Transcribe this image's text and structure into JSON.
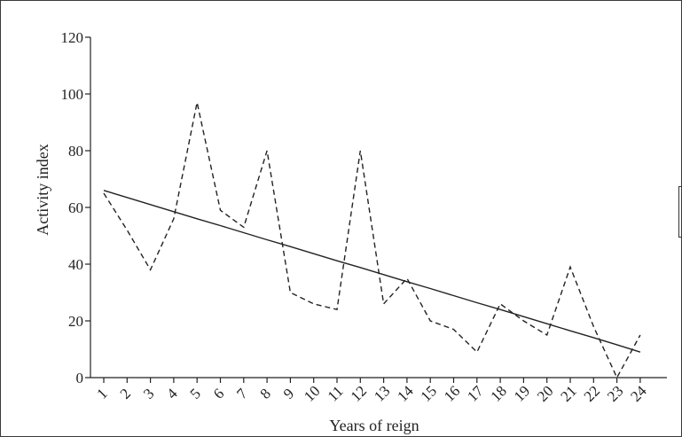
{
  "chart_data": {
    "type": "line",
    "title": "",
    "xlabel": "Years of reign",
    "ylabel": "Activity index",
    "ylim": [
      0,
      120
    ],
    "yticks": [
      0,
      20,
      40,
      60,
      80,
      100,
      120
    ],
    "categories": [
      "1",
      "2",
      "3",
      "4",
      "5",
      "6",
      "7",
      "8",
      "9",
      "10",
      "11",
      "12",
      "13",
      "14",
      "15",
      "16",
      "17",
      "18",
      "19",
      "20",
      "21",
      "22",
      "23",
      "24"
    ],
    "series": [
      {
        "style": "dashed",
        "values": [
          65,
          52,
          38,
          56,
          97,
          59,
          53,
          80,
          30,
          26,
          24,
          80,
          26,
          35,
          20,
          17,
          9,
          26,
          20,
          15,
          39,
          18,
          0,
          15
        ]
      },
      {
        "style": "solid",
        "values": [
          66,
          63.5,
          61,
          58.5,
          56,
          53.6,
          51.1,
          48.6,
          46.2,
          43.7,
          41.2,
          38.8,
          36.3,
          33.8,
          31.4,
          28.9,
          26.4,
          24,
          21.5,
          19,
          16.5,
          14.1,
          11.6,
          9
        ]
      }
    ],
    "grid": false,
    "legend": "right (cropped)"
  }
}
